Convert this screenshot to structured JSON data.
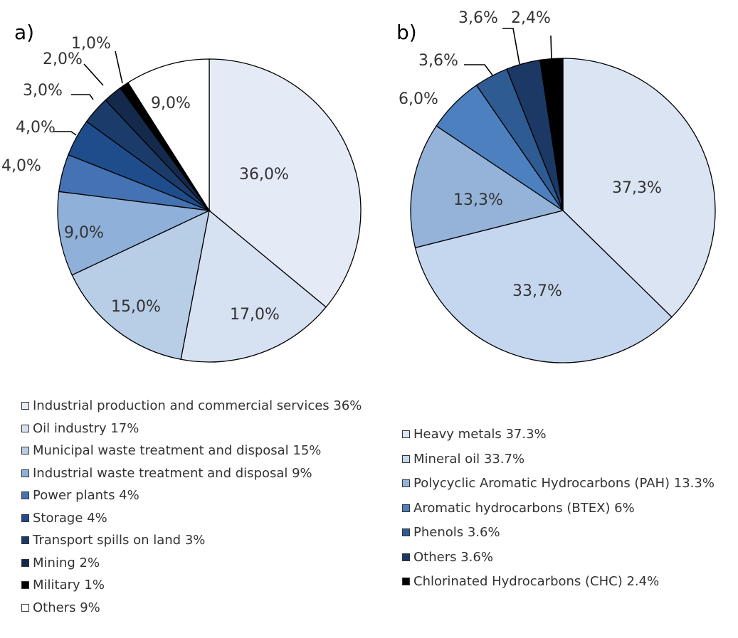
{
  "chart_data": [
    {
      "type": "pie",
      "panel_label": "a)",
      "slices": [
        {
          "label": "Industrial production and commercial services 36%",
          "value": 36.0,
          "data_label": "36,0%",
          "color": "#e4ebf6"
        },
        {
          "label": "Oil industry 17%",
          "value": 17.0,
          "data_label": "17,0%",
          "color": "#d6e1f1"
        },
        {
          "label": "Municipal waste treatment and disposal 15%",
          "value": 15.0,
          "data_label": "15,0%",
          "color": "#b8cde6"
        },
        {
          "label": "Industrial waste treatment and disposal 9%",
          "value": 9.0,
          "data_label": "9,0%",
          "color": "#8fb0d8"
        },
        {
          "label": "Power plants 4%",
          "value": 4.0,
          "data_label": "4,0%",
          "color": "#4472b2"
        },
        {
          "label": "Storage 4%",
          "value": 4.0,
          "data_label": "4,0%",
          "color": "#1f4d8c"
        },
        {
          "label": "Transport spills on land 3%",
          "value": 3.0,
          "data_label": "3,0%",
          "color": "#1b3c6a"
        },
        {
          "label": "Mining 2%",
          "value": 2.0,
          "data_label": "2,0%",
          "color": "#142a4c"
        },
        {
          "label": "Military 1%",
          "value": 1.0,
          "data_label": "1,0%",
          "color": "#000000"
        },
        {
          "label": "Others 9%",
          "value": 9.0,
          "data_label": "9,0%",
          "color": "#ffffff"
        }
      ]
    },
    {
      "type": "pie",
      "panel_label": "b)",
      "slices": [
        {
          "label": "Heavy metals 37.3%",
          "value": 37.3,
          "data_label": "37,3%",
          "color": "#dbe4f2"
        },
        {
          "label": "Mineral oil 33.7%",
          "value": 33.7,
          "data_label": "33,7%",
          "color": "#c5d7ee"
        },
        {
          "label": "Polycyclic Aromatic Hydrocarbons (PAH) 13.3%",
          "value": 13.3,
          "data_label": "13,3%",
          "color": "#95b3d9"
        },
        {
          "label": "Aromatic hydrocarbons (BTEX) 6%",
          "value": 6.0,
          "data_label": "6,0%",
          "color": "#4d80bf"
        },
        {
          "label": "Phenols 3.6%",
          "value": 3.6,
          "data_label": "3,6%",
          "color": "#2f5b93"
        },
        {
          "label": "Others 3.6%",
          "value": 3.6,
          "data_label": "3,6%",
          "color": "#1c3864"
        },
        {
          "label": "Chlorinated Hydrocarbons (CHC) 2.4%",
          "value": 2.4,
          "data_label": "2,4%",
          "color": "#000000"
        }
      ]
    }
  ]
}
